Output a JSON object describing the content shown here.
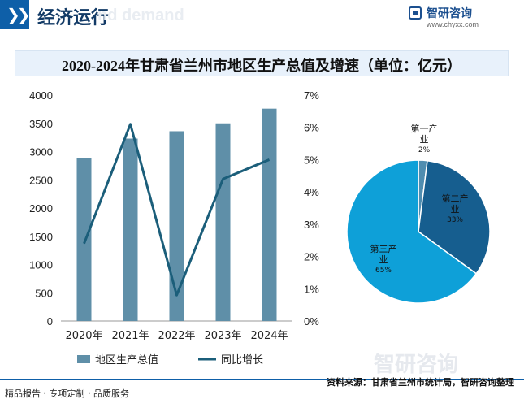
{
  "header": {
    "title": "经济运行",
    "watermark": "nd demand",
    "brand_name": "智研咨询",
    "brand_url": "www.chyxx.com"
  },
  "chart_data": [
    {
      "type": "bar",
      "title": "2020-2024年甘肃省兰州市地区生产总值及增速（单位：亿元）",
      "categories": [
        "2020年",
        "2021年",
        "2022年",
        "2023年",
        "2024年"
      ],
      "series": [
        {
          "name": "地区生产总值",
          "type": "bar",
          "values": [
            2890,
            3230,
            3360,
            3500,
            3760
          ],
          "color": "#5f8fa8",
          "axis": "left"
        },
        {
          "name": "同比增长",
          "type": "line",
          "values": [
            2.4,
            6.1,
            0.8,
            4.4,
            5.0
          ],
          "color": "#1b5e7a",
          "axis": "right"
        }
      ],
      "y_left": {
        "ylim": [
          0,
          4000
        ],
        "ticks": [
          0,
          500,
          1000,
          1500,
          2000,
          2500,
          3000,
          3500,
          4000
        ]
      },
      "y_right": {
        "ylim": [
          0,
          7
        ],
        "ticks": [
          "0%",
          "1%",
          "2%",
          "3%",
          "4%",
          "5%",
          "6%",
          "7%"
        ]
      },
      "legend_placement": "bottom",
      "grid": false
    },
    {
      "type": "pie",
      "labels": [
        "第一产业",
        "第二产业",
        "第三产业"
      ],
      "values": [
        2,
        33,
        65
      ],
      "percent_labels": [
        "2%",
        "33%",
        "65%"
      ],
      "colors": [
        "#4f8db0",
        "#165e8f",
        "#0ea0d8"
      ]
    }
  ],
  "footer": {
    "left": "精品报告 · 专项定制 · 品质服务",
    "right": "资料来源：甘肃省兰州市统计局，智研咨询整理",
    "watermark": "智研咨询"
  }
}
